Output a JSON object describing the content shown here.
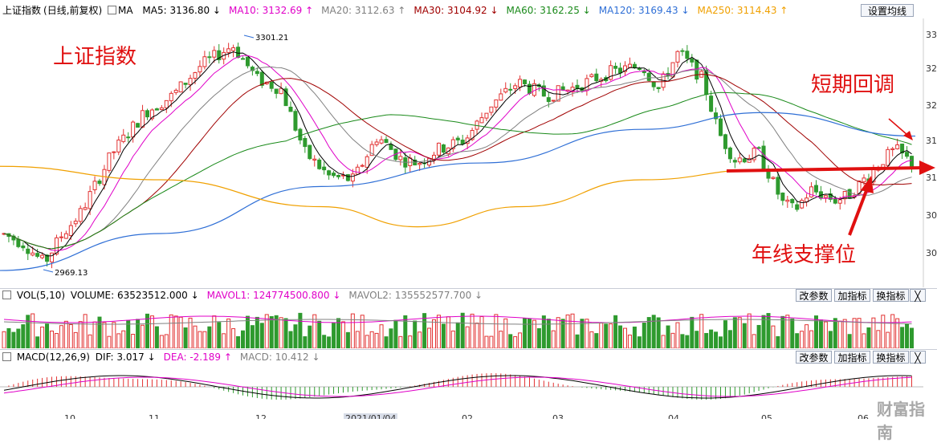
{
  "main": {
    "title": "上证指数",
    "subtitle": "(日线,前复权)",
    "ma_label": "MA",
    "mas": [
      {
        "label": "MA5: 3136.80",
        "color": "#000000",
        "arrow": "↓"
      },
      {
        "label": "MA10: 3132.69",
        "color": "#e000c8",
        "arrow": "↑"
      },
      {
        "label": "MA20: 3112.63",
        "color": "#808080",
        "arrow": "↑"
      },
      {
        "label": "MA30: 3104.92",
        "color": "#a00000",
        "arrow": "↓"
      },
      {
        "label": "MA60: 3162.25",
        "color": "#1a8a1a",
        "arrow": "↓"
      },
      {
        "label": "MA120: 3169.43",
        "color": "#2f6fd6",
        "arrow": "↓"
      },
      {
        "label": "MA250: 3114.43",
        "color": "#f0a000",
        "arrow": "↑"
      }
    ],
    "settings_button": "设置均线"
  },
  "annotations": {
    "index_name": "上证指数",
    "pullback": "短期回调",
    "support": "年线支撑位"
  },
  "volume": {
    "title": "VOL(5,10)",
    "values": [
      {
        "label": "VOLUME: 63523512.000",
        "color": "#000000",
        "arrow": "↓"
      },
      {
        "label": "MAVOL1: 124774500.800",
        "color": "#e000c8",
        "arrow": "↓"
      },
      {
        "label": "MAVOL2: 135552577.700",
        "color": "#808080",
        "arrow": "↓"
      }
    ]
  },
  "macd": {
    "title": "MACD(12,26,9)",
    "values": [
      {
        "label": "DIF: 3.017",
        "color": "#000000",
        "arrow": "↓"
      },
      {
        "label": "DEA: -2.189",
        "color": "#e000c8",
        "arrow": "↑"
      },
      {
        "label": "MACD: 10.412",
        "color": "#808080",
        "arrow": "↓"
      }
    ]
  },
  "panel_buttons": [
    "改参数",
    "加指标",
    "换指标",
    "╳"
  ],
  "watermark": "财富指南",
  "colors": {
    "up": "#e23232",
    "down": "#2e9a2e"
  },
  "chart_data": {
    "type": "candlestick",
    "title": "上证指数",
    "x_ticks": [
      "10",
      "11",
      "12",
      "2021/01/04",
      "02",
      "03",
      "04",
      "05",
      "06"
    ],
    "y_ticks": [
      "33",
      "32",
      "32",
      "31",
      "31",
      "30",
      "30"
    ],
    "y_range": [
      2940,
      3340
    ],
    "price_high": 3301.21,
    "price_low": 2969.13,
    "high_label": "3301.21",
    "low_label": "2969.13",
    "moving_averages": {
      "MA5": 3136.8,
      "MA10": 3132.69,
      "MA20": 3112.63,
      "MA30": 3104.92,
      "MA60": 3162.25,
      "MA120": 3169.43,
      "MA250": 3114.43
    },
    "grid": false
  }
}
